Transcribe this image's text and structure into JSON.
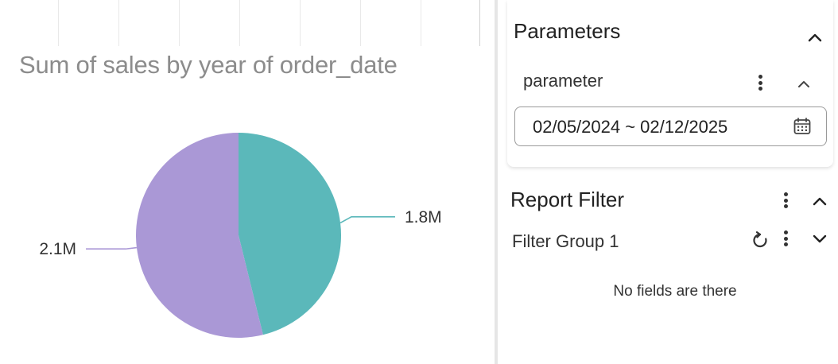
{
  "chart": {
    "title": "Sum of sales by year of order_date"
  },
  "chart_data": {
    "type": "pie",
    "title": "Sum of sales by year of order_date",
    "slices": [
      {
        "label": "1.8M",
        "value": 1.8,
        "color": "#5bb8ba"
      },
      {
        "label": "2.1M",
        "value": 2.1,
        "color": "#aa98d6"
      }
    ]
  },
  "parameters": {
    "title": "Parameters",
    "param_label": "parameter",
    "date_range": "02/05/2024 ~ 02/12/2025"
  },
  "report_filter": {
    "title": "Report Filter",
    "filter_group_label": "Filter Group 1",
    "empty_text": "No fields are there"
  }
}
